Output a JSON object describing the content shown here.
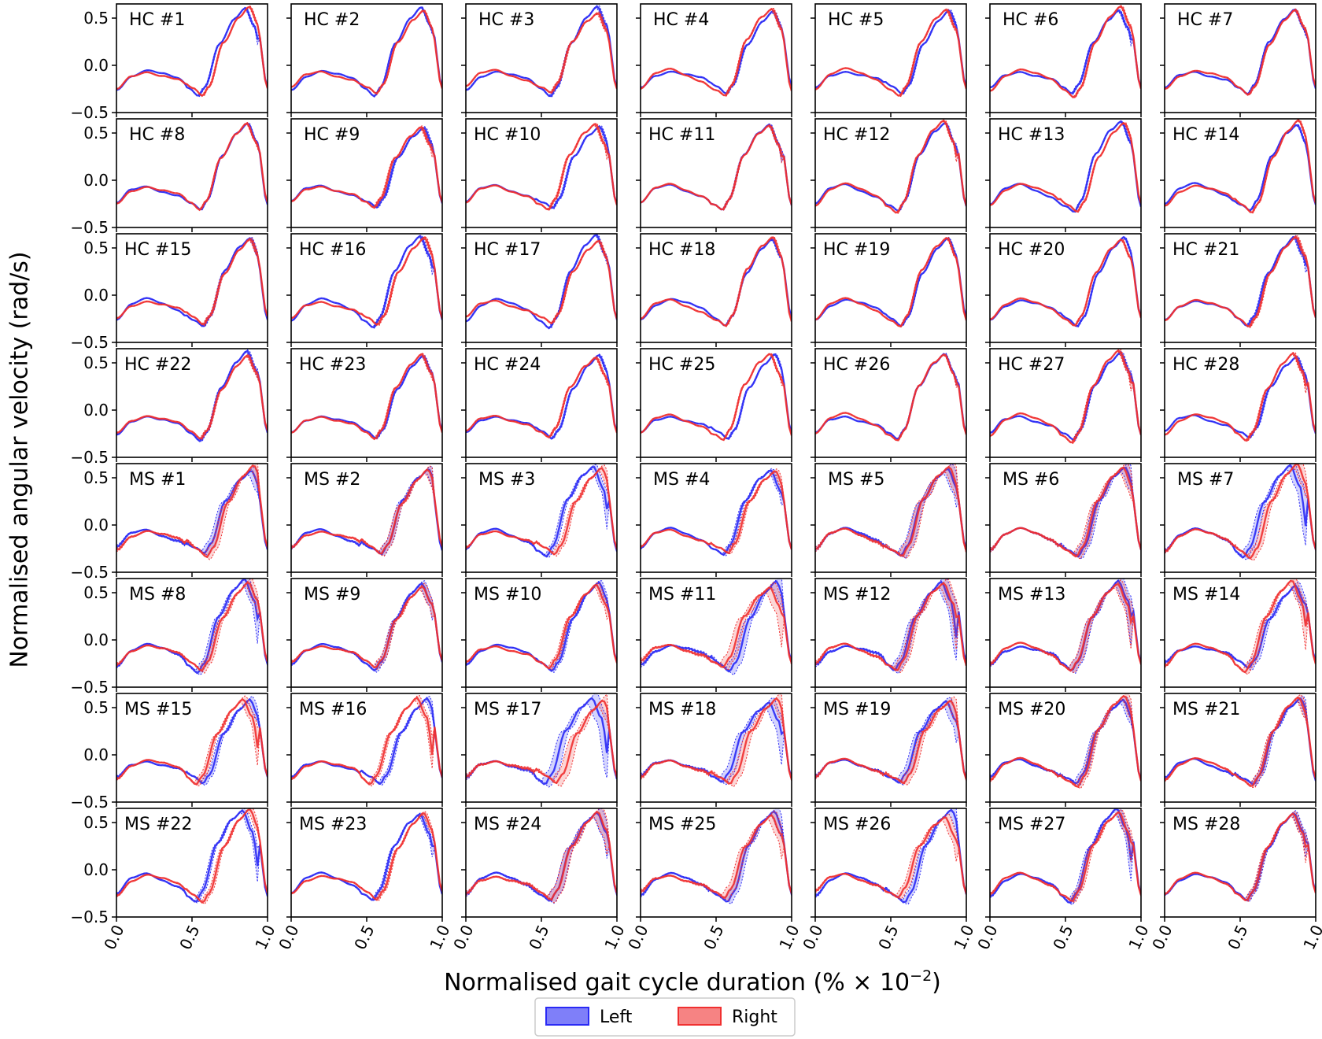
{
  "chart_data": {
    "type": "line",
    "xlabel_main": "Normalised gait cycle duration (%",
    "xlabel_times": " × 10",
    "xlabel_exp": "−2",
    "xlabel_close": ")",
    "ylabel": "Normalised angular velocity (rad/s)",
    "xlim": [
      0.0,
      1.0
    ],
    "ylim": [
      -0.5,
      0.65
    ],
    "x_tick_labels": [
      "0.0",
      "0.5",
      "1.0"
    ],
    "y_tick_labels": [
      "0.5",
      "0.0",
      "−0.5"
    ],
    "y_tick_values": [
      0.5,
      0.0,
      -0.5
    ],
    "x_tick_values": [
      0.0,
      0.5,
      1.0
    ],
    "legend": [
      {
        "name": "Left",
        "color": "#2a2af5"
      },
      {
        "name": "Right",
        "color": "#f03030"
      }
    ],
    "grid": false,
    "layout": {
      "rows": 8,
      "cols": 7
    },
    "panel_labels": [
      "HC #1",
      "HC #2",
      "HC #3",
      "HC #4",
      "HC #5",
      "HC #6",
      "HC #7",
      "HC #8",
      "HC #9",
      "HC #10",
      "HC #11",
      "HC #12",
      "HC #13",
      "HC #14",
      "HC #15",
      "HC #16",
      "HC #17",
      "HC #18",
      "HC #19",
      "HC #20",
      "HC #21",
      "HC #22",
      "HC #23",
      "HC #24",
      "HC #25",
      "HC #26",
      "HC #27",
      "HC #28",
      "MS #1",
      "MS #2",
      "MS #3",
      "MS #4",
      "MS #5",
      "MS #6",
      "MS #7",
      "MS #8",
      "MS #9",
      "MS #10",
      "MS #11",
      "MS #12",
      "MS #13",
      "MS #14",
      "MS #15",
      "MS #16",
      "MS #17",
      "MS #18",
      "MS #19",
      "MS #20",
      "MS #21",
      "MS #22",
      "MS #23",
      "MS #24",
      "MS #25",
      "MS #26",
      "MS #27",
      "MS #28"
    ],
    "typical_curve": {
      "x": [
        0.0,
        0.1,
        0.2,
        0.3,
        0.4,
        0.5,
        0.56,
        0.6,
        0.7,
        0.8,
        0.87,
        0.93,
        1.0
      ],
      "y": [
        -0.25,
        -0.1,
        -0.05,
        -0.1,
        -0.15,
        -0.25,
        -0.32,
        -0.22,
        0.25,
        0.5,
        0.6,
        0.4,
        -0.25
      ]
    }
  }
}
